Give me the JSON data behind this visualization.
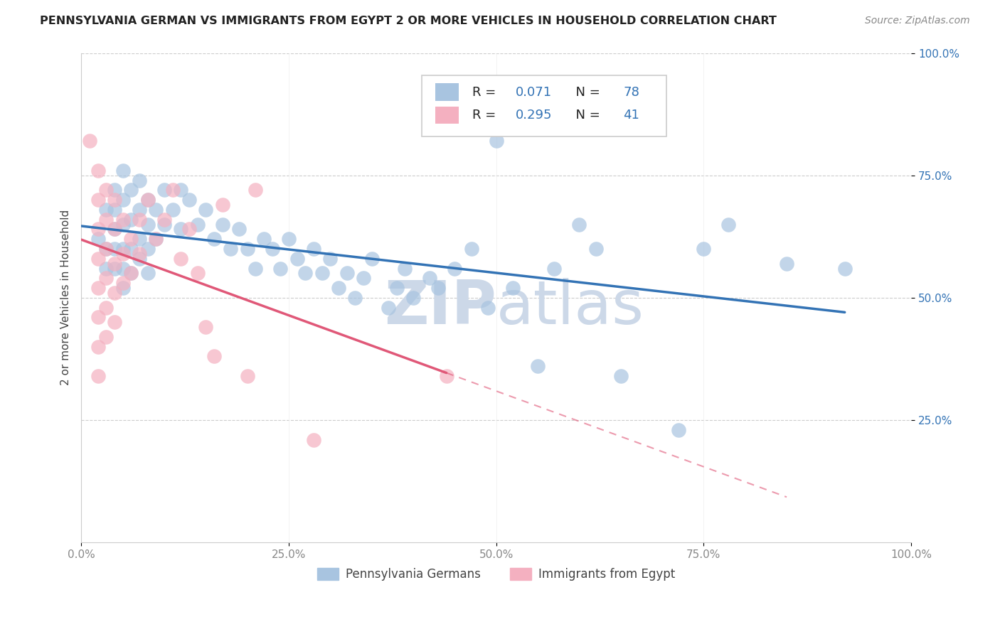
{
  "title": "PENNSYLVANIA GERMAN VS IMMIGRANTS FROM EGYPT 2 OR MORE VEHICLES IN HOUSEHOLD CORRELATION CHART",
  "source": "Source: ZipAtlas.com",
  "ylabel": "2 or more Vehicles in Household",
  "xlim": [
    0.0,
    1.0
  ],
  "ylim": [
    0.0,
    1.0
  ],
  "xtick_labels": [
    "0.0%",
    "25.0%",
    "50.0%",
    "75.0%",
    "100.0%"
  ],
  "xtick_vals": [
    0.0,
    0.25,
    0.5,
    0.75,
    1.0
  ],
  "ytick_labels": [
    "25.0%",
    "50.0%",
    "75.0%",
    "100.0%"
  ],
  "ytick_vals": [
    0.25,
    0.5,
    0.75,
    1.0
  ],
  "blue_R": 0.071,
  "blue_N": 78,
  "pink_R": 0.295,
  "pink_N": 41,
  "blue_color": "#a8c4e0",
  "pink_color": "#f4b0c0",
  "blue_line_color": "#3373b5",
  "pink_line_color": "#e05878",
  "watermark_color": "#ccd8e8",
  "blue_scatter": [
    [
      0.02,
      0.62
    ],
    [
      0.03,
      0.68
    ],
    [
      0.03,
      0.6
    ],
    [
      0.03,
      0.56
    ],
    [
      0.04,
      0.72
    ],
    [
      0.04,
      0.68
    ],
    [
      0.04,
      0.64
    ],
    [
      0.04,
      0.6
    ],
    [
      0.04,
      0.56
    ],
    [
      0.05,
      0.76
    ],
    [
      0.05,
      0.7
    ],
    [
      0.05,
      0.65
    ],
    [
      0.05,
      0.6
    ],
    [
      0.05,
      0.56
    ],
    [
      0.05,
      0.52
    ],
    [
      0.06,
      0.72
    ],
    [
      0.06,
      0.66
    ],
    [
      0.06,
      0.6
    ],
    [
      0.06,
      0.55
    ],
    [
      0.07,
      0.74
    ],
    [
      0.07,
      0.68
    ],
    [
      0.07,
      0.62
    ],
    [
      0.07,
      0.58
    ],
    [
      0.08,
      0.7
    ],
    [
      0.08,
      0.65
    ],
    [
      0.08,
      0.6
    ],
    [
      0.08,
      0.55
    ],
    [
      0.09,
      0.68
    ],
    [
      0.09,
      0.62
    ],
    [
      0.1,
      0.72
    ],
    [
      0.1,
      0.65
    ],
    [
      0.11,
      0.68
    ],
    [
      0.12,
      0.72
    ],
    [
      0.12,
      0.64
    ],
    [
      0.13,
      0.7
    ],
    [
      0.14,
      0.65
    ],
    [
      0.15,
      0.68
    ],
    [
      0.16,
      0.62
    ],
    [
      0.17,
      0.65
    ],
    [
      0.18,
      0.6
    ],
    [
      0.19,
      0.64
    ],
    [
      0.2,
      0.6
    ],
    [
      0.21,
      0.56
    ],
    [
      0.22,
      0.62
    ],
    [
      0.23,
      0.6
    ],
    [
      0.24,
      0.56
    ],
    [
      0.25,
      0.62
    ],
    [
      0.26,
      0.58
    ],
    [
      0.27,
      0.55
    ],
    [
      0.28,
      0.6
    ],
    [
      0.29,
      0.55
    ],
    [
      0.3,
      0.58
    ],
    [
      0.31,
      0.52
    ],
    [
      0.32,
      0.55
    ],
    [
      0.33,
      0.5
    ],
    [
      0.34,
      0.54
    ],
    [
      0.35,
      0.58
    ],
    [
      0.37,
      0.48
    ],
    [
      0.38,
      0.52
    ],
    [
      0.39,
      0.56
    ],
    [
      0.4,
      0.5
    ],
    [
      0.42,
      0.54
    ],
    [
      0.43,
      0.52
    ],
    [
      0.45,
      0.56
    ],
    [
      0.47,
      0.6
    ],
    [
      0.49,
      0.48
    ],
    [
      0.5,
      0.82
    ],
    [
      0.52,
      0.52
    ],
    [
      0.55,
      0.36
    ],
    [
      0.57,
      0.56
    ],
    [
      0.6,
      0.65
    ],
    [
      0.62,
      0.6
    ],
    [
      0.65,
      0.34
    ],
    [
      0.72,
      0.23
    ],
    [
      0.75,
      0.6
    ],
    [
      0.78,
      0.65
    ],
    [
      0.85,
      0.57
    ],
    [
      0.92,
      0.56
    ]
  ],
  "pink_scatter": [
    [
      0.01,
      0.82
    ],
    [
      0.02,
      0.76
    ],
    [
      0.02,
      0.7
    ],
    [
      0.02,
      0.64
    ],
    [
      0.02,
      0.58
    ],
    [
      0.02,
      0.52
    ],
    [
      0.02,
      0.46
    ],
    [
      0.02,
      0.4
    ],
    [
      0.02,
      0.34
    ],
    [
      0.03,
      0.72
    ],
    [
      0.03,
      0.66
    ],
    [
      0.03,
      0.6
    ],
    [
      0.03,
      0.54
    ],
    [
      0.03,
      0.48
    ],
    [
      0.03,
      0.42
    ],
    [
      0.04,
      0.7
    ],
    [
      0.04,
      0.64
    ],
    [
      0.04,
      0.57
    ],
    [
      0.04,
      0.51
    ],
    [
      0.04,
      0.45
    ],
    [
      0.05,
      0.66
    ],
    [
      0.05,
      0.59
    ],
    [
      0.05,
      0.53
    ],
    [
      0.06,
      0.62
    ],
    [
      0.06,
      0.55
    ],
    [
      0.07,
      0.66
    ],
    [
      0.07,
      0.59
    ],
    [
      0.08,
      0.7
    ],
    [
      0.09,
      0.62
    ],
    [
      0.1,
      0.66
    ],
    [
      0.11,
      0.72
    ],
    [
      0.12,
      0.58
    ],
    [
      0.13,
      0.64
    ],
    [
      0.14,
      0.55
    ],
    [
      0.15,
      0.44
    ],
    [
      0.16,
      0.38
    ],
    [
      0.17,
      0.69
    ],
    [
      0.2,
      0.34
    ],
    [
      0.21,
      0.72
    ],
    [
      0.28,
      0.21
    ],
    [
      0.44,
      0.34
    ]
  ],
  "legend": {
    "blue_label": "Pennsylvania Germans",
    "pink_label": "Immigrants from Egypt"
  }
}
